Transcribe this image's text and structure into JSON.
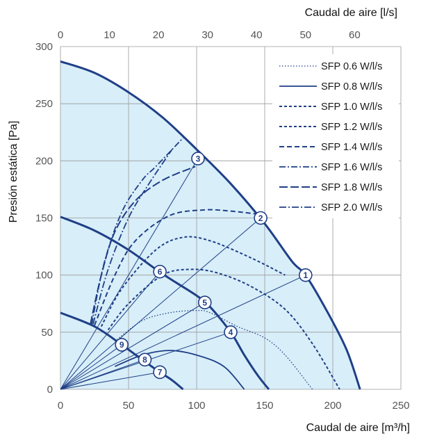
{
  "chart_data": {
    "type": "line",
    "xlabel": "Caudal de aire [m³/h]",
    "x2label": "Caudal de aire [l/s]",
    "ylabel": "Presión estática [Pa]",
    "xlim": [
      0,
      250
    ],
    "ylim": [
      0,
      300
    ],
    "x2lim_ls": [
      0,
      69.444
    ],
    "xticks": [
      0,
      50,
      100,
      150,
      200,
      250
    ],
    "yticks": [
      0,
      50,
      100,
      150,
      200,
      250,
      300
    ],
    "x2ticks": [
      0,
      10,
      20,
      30,
      40,
      50,
      60
    ],
    "grid": true,
    "legend_position": "top-right",
    "fill_color": "#d8eef9",
    "line_color": "#1f3f86",
    "fan_curves": [
      {
        "points": [
          [
            0,
            287
          ],
          [
            25,
            277
          ],
          [
            50,
            260
          ],
          [
            75,
            238
          ],
          [
            100,
            210
          ],
          [
            125,
            180
          ],
          [
            150,
            145
          ],
          [
            170,
            112
          ],
          [
            180,
            100
          ],
          [
            195,
            70
          ],
          [
            210,
            35
          ],
          [
            220,
            0
          ]
        ]
      },
      {
        "points": [
          [
            0,
            151
          ],
          [
            25,
            139
          ],
          [
            50,
            122
          ],
          [
            75,
            101
          ],
          [
            100,
            82
          ],
          [
            110,
            72
          ],
          [
            125,
            50
          ],
          [
            135,
            30
          ],
          [
            145,
            12
          ],
          [
            153,
            0
          ]
        ]
      },
      {
        "points": [
          [
            0,
            67
          ],
          [
            25,
            55
          ],
          [
            45,
            39
          ],
          [
            60,
            26
          ],
          [
            73,
            15
          ],
          [
            82,
            8
          ],
          [
            90,
            0
          ]
        ]
      }
    ],
    "series": [
      {
        "name": "SFP 0.6 W/l/s",
        "dash": "1.5 2.5",
        "width": 1.3,
        "points": [
          [
            40,
            42
          ],
          [
            60,
            60
          ],
          [
            80,
            67
          ],
          [
            100,
            69
          ],
          [
            110,
            67
          ],
          [
            130,
            55
          ],
          [
            150,
            45
          ],
          [
            165,
            30
          ],
          [
            185,
            0
          ]
        ]
      },
      {
        "name": "SFP 0.8 W/l/s",
        "dash": "",
        "width": 1.8,
        "points": [
          [
            40,
            20
          ],
          [
            60,
            30
          ],
          [
            80,
            34
          ],
          [
            100,
            30
          ],
          [
            120,
            20
          ],
          [
            135,
            0
          ]
        ]
      },
      {
        "name": "SFP 1.0 W/l/s",
        "dash": "4 3",
        "width": 2,
        "points": [
          [
            35,
            52
          ],
          [
            50,
            75
          ],
          [
            75,
            100
          ],
          [
            95,
            105
          ],
          [
            115,
            102
          ],
          [
            140,
            90
          ],
          [
            165,
            70
          ],
          [
            185,
            40
          ],
          [
            205,
            0
          ]
        ]
      },
      {
        "name": "SFP 1.2 W/l/s",
        "dash": "4 3",
        "width": 2,
        "points": [
          [
            30,
            55
          ],
          [
            45,
            88
          ],
          [
            70,
            122
          ],
          [
            90,
            133
          ],
          [
            110,
            130
          ],
          [
            140,
            115
          ],
          [
            165,
            100
          ]
        ]
      },
      {
        "name": "SFP 1.4 W/l/s",
        "dash": "7 4",
        "width": 2,
        "points": [
          [
            25,
            56
          ],
          [
            40,
            100
          ],
          [
            55,
            130
          ],
          [
            80,
            152
          ],
          [
            105,
            157
          ],
          [
            125,
            156
          ],
          [
            147,
            153
          ]
        ]
      },
      {
        "name": "SFP 1.6 W/l/s",
        "dash": "9 3 2 3",
        "width": 1.8,
        "points": [
          [
            23,
            57
          ],
          [
            32,
            110
          ],
          [
            45,
            155
          ],
          [
            60,
            183
          ],
          [
            70,
            195
          ],
          [
            90,
            220
          ]
        ]
      },
      {
        "name": "SFP 1.8 W/l/s",
        "dash": "12 4",
        "width": 2,
        "points": [
          [
            22,
            57
          ],
          [
            30,
            100
          ],
          [
            40,
            138
          ],
          [
            55,
            165
          ],
          [
            75,
            183
          ],
          [
            99,
            195
          ]
        ]
      },
      {
        "name": "SFP 2.0 W/l/s",
        "dash": "10 3 2 3",
        "width": 1.8,
        "points": [
          [
            24,
            57
          ],
          [
            35,
            105
          ],
          [
            50,
            150
          ],
          [
            65,
            180
          ],
          [
            82,
            210
          ]
        ]
      }
    ],
    "rays": [
      {
        "from": [
          0,
          0
        ],
        "to": [
          180,
          100
        ]
      },
      {
        "from": [
          0,
          0
        ],
        "to": [
          147,
          150
        ]
      },
      {
        "from": [
          0,
          0
        ],
        "to": [
          101,
          202
        ]
      },
      {
        "from": [
          0,
          0
        ],
        "to": [
          125,
          50
        ]
      },
      {
        "from": [
          0,
          0
        ],
        "to": [
          106,
          76
        ]
      },
      {
        "from": [
          0,
          0
        ],
        "to": [
          73,
          103
        ]
      },
      {
        "from": [
          0,
          0
        ],
        "to": [
          73,
          15
        ]
      },
      {
        "from": [
          0,
          0
        ],
        "to": [
          62,
          26
        ]
      },
      {
        "from": [
          0,
          0
        ],
        "to": [
          45,
          39
        ]
      }
    ],
    "markers": [
      {
        "label": "1",
        "x": 180,
        "y": 100
      },
      {
        "label": "2",
        "x": 147,
        "y": 150
      },
      {
        "label": "3",
        "x": 101,
        "y": 202
      },
      {
        "label": "4",
        "x": 125,
        "y": 50
      },
      {
        "label": "5",
        "x": 106,
        "y": 76
      },
      {
        "label": "6",
        "x": 73,
        "y": 103
      },
      {
        "label": "7",
        "x": 73,
        "y": 15
      },
      {
        "label": "8",
        "x": 62,
        "y": 26
      },
      {
        "label": "9",
        "x": 45,
        "y": 39
      }
    ]
  }
}
